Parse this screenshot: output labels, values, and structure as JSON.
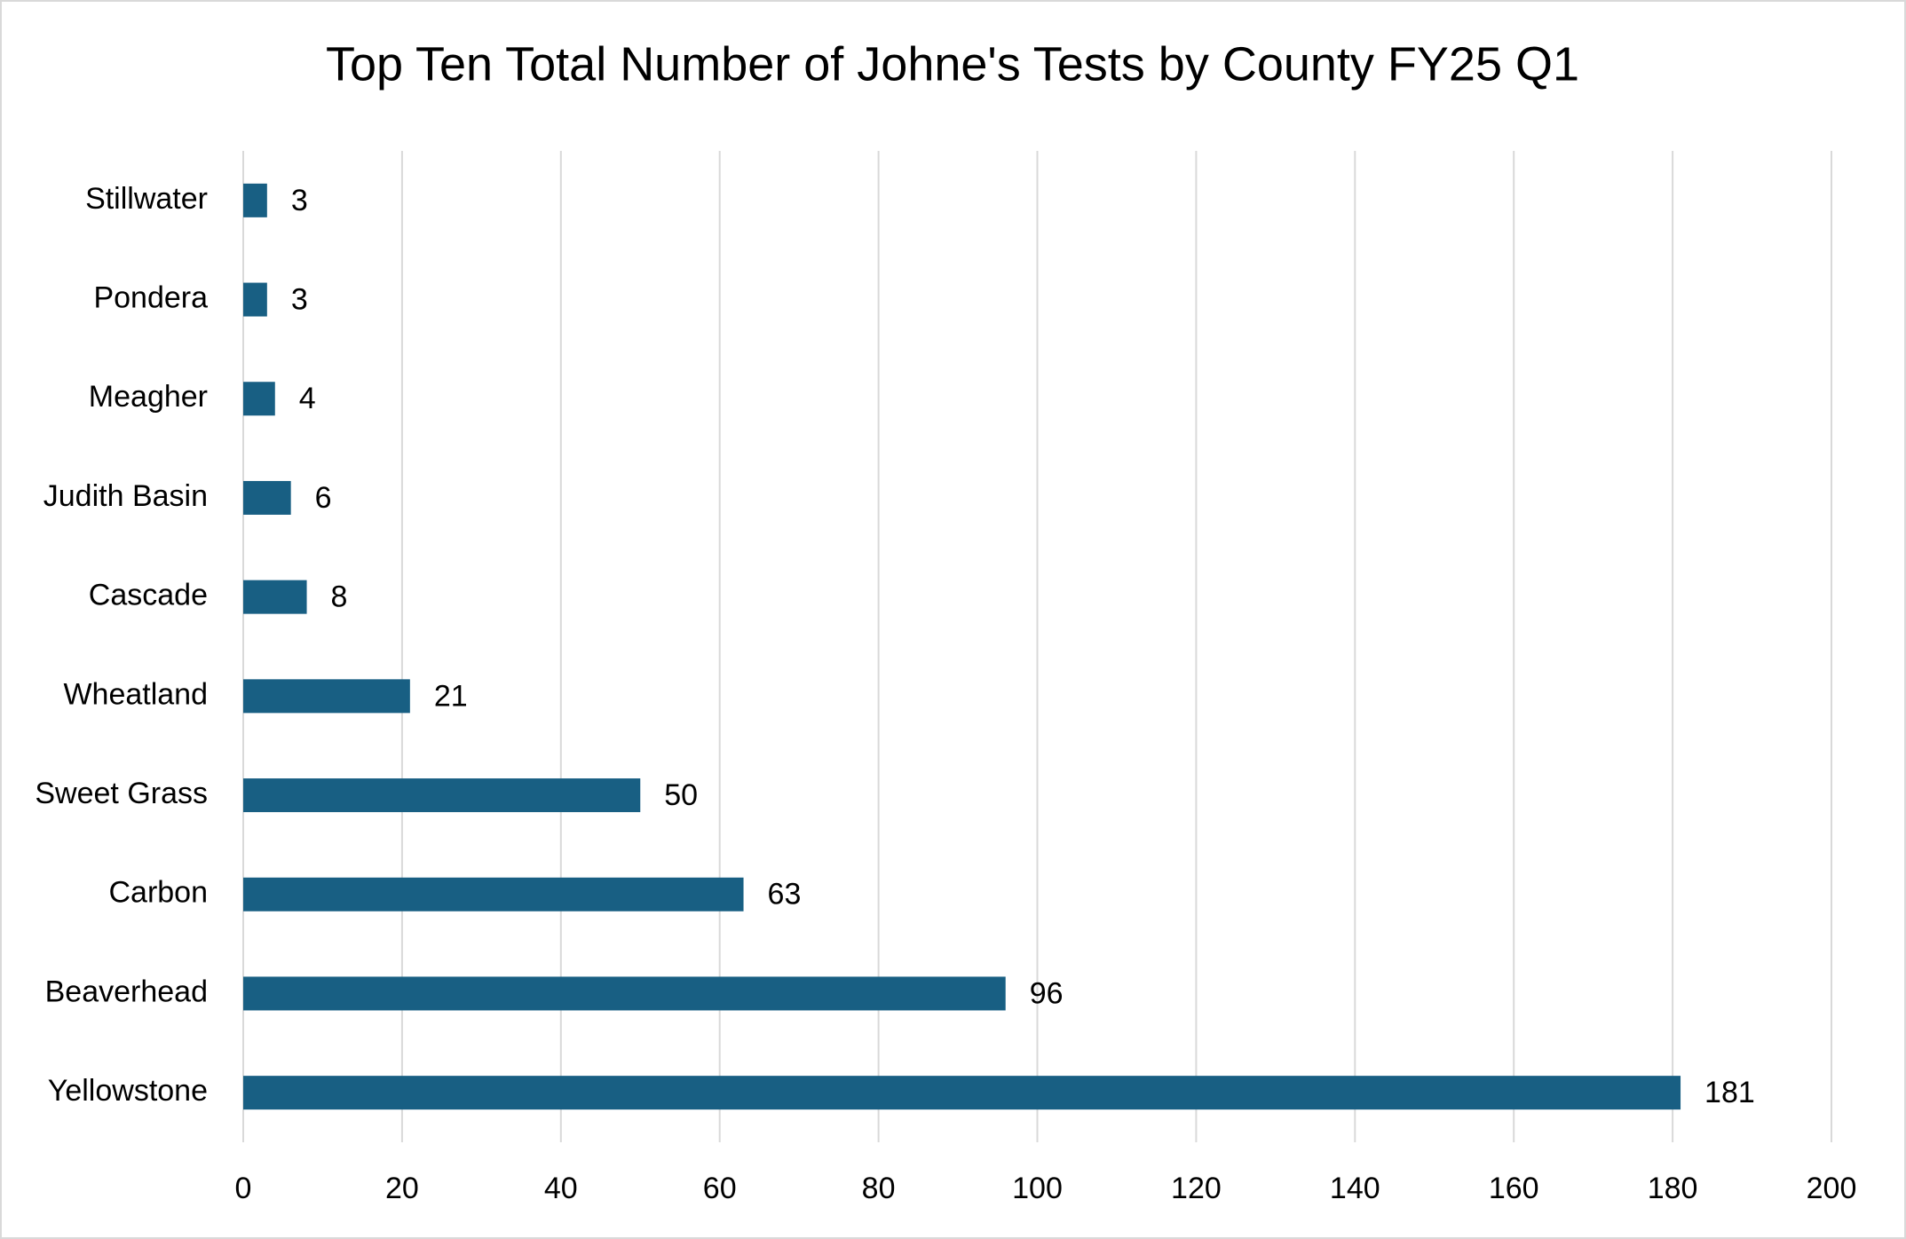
{
  "chart_data": {
    "type": "bar",
    "orientation": "horizontal",
    "title": "Top Ten Total Number of Johne's Tests by County FY25 Q1",
    "categories": [
      "Stillwater",
      "Pondera",
      "Meagher",
      "Judith Basin",
      "Cascade",
      "Wheatland",
      "Sweet Grass",
      "Carbon",
      "Beaverhead",
      "Yellowstone"
    ],
    "values": [
      3,
      3,
      4,
      6,
      8,
      21,
      50,
      63,
      96,
      181
    ],
    "color": "#185f83",
    "xlim": [
      0,
      200
    ],
    "xticks": [
      0,
      20,
      40,
      60,
      80,
      100,
      120,
      140,
      160,
      180,
      200
    ],
    "grid": true
  }
}
